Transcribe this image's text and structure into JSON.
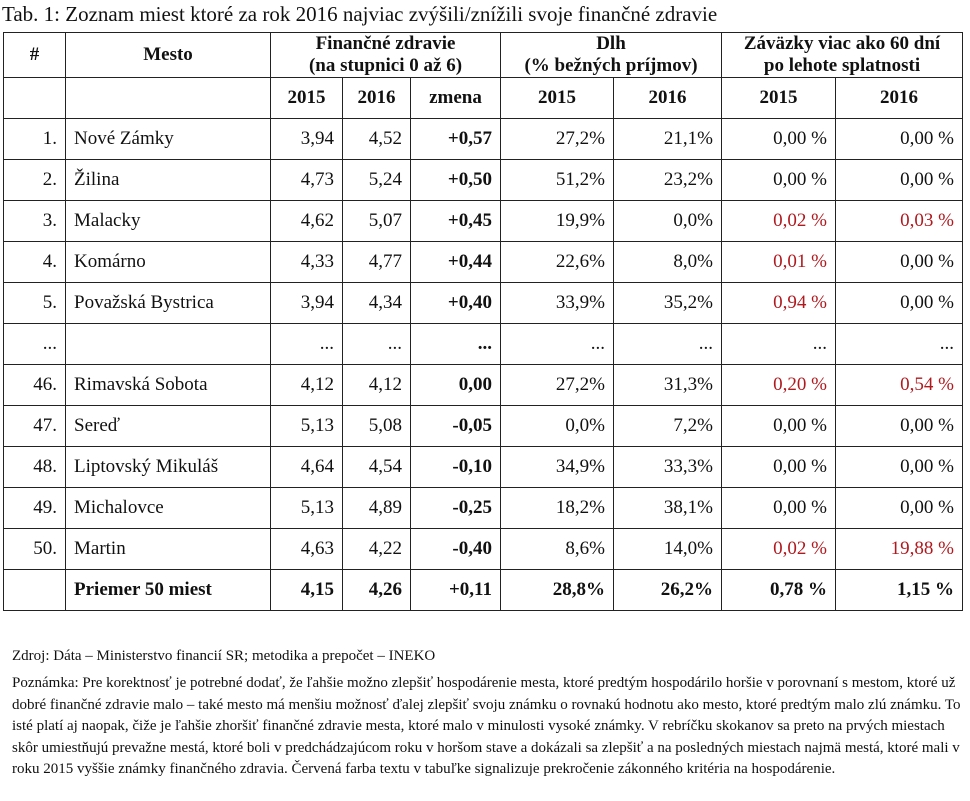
{
  "title": "Tab. 1: Zoznam miest ktoré za rok 2016 najviac zvýšili/znížili svoje finančné zdravie",
  "headers": {
    "num": "#",
    "city": "Mesto",
    "health_line1": "Finančné zdravie",
    "health_line2": "(na stupnici 0 až 6)",
    "debt_line1": "Dlh",
    "debt_line2": "(% bežných príjmov)",
    "liab_line1": "Záväzky viac ako 60 dní",
    "liab_line2": "po lehote splatnosti",
    "y2015": "2015",
    "y2016": "2016",
    "change": "zmena"
  },
  "rows": [
    {
      "n": "1.",
      "city": "Nové Zámky",
      "h15": "3,94",
      "h16": "4,52",
      "ch": "+0,57",
      "d15": "27,2%",
      "d16": "21,1%",
      "l15": "0,00 %",
      "l16": "0,00 %",
      "l15_red": false,
      "l16_red": false
    },
    {
      "n": "2.",
      "city": "Žilina",
      "h15": "4,73",
      "h16": "5,24",
      "ch": "+0,50",
      "d15": "51,2%",
      "d16": "23,2%",
      "l15": "0,00 %",
      "l16": "0,00 %",
      "l15_red": false,
      "l16_red": false
    },
    {
      "n": "3.",
      "city": "Malacky",
      "h15": "4,62",
      "h16": "5,07",
      "ch": "+0,45",
      "d15": "19,9%",
      "d16": "0,0%",
      "l15": "0,02 %",
      "l16": "0,03 %",
      "l15_red": true,
      "l16_red": true
    },
    {
      "n": "4.",
      "city": "Komárno",
      "h15": "4,33",
      "h16": "4,77",
      "ch": "+0,44",
      "d15": "22,6%",
      "d16": "8,0%",
      "l15": "0,01 %",
      "l16": "0,00 %",
      "l15_red": true,
      "l16_red": false
    },
    {
      "n": "5.",
      "city": "Považská Bystrica",
      "h15": "3,94",
      "h16": "4,34",
      "ch": "+0,40",
      "d15": "33,9%",
      "d16": "35,2%",
      "l15": "0,94 %",
      "l16": "0,00 %",
      "l15_red": true,
      "l16_red": false
    },
    {
      "n": "...",
      "city": "",
      "h15": "...",
      "h16": "...",
      "ch": "...",
      "d15": "...",
      "d16": "...",
      "l15": "...",
      "l16": "...",
      "l15_red": false,
      "l16_red": false
    },
    {
      "n": "46.",
      "city": "Rimavská Sobota",
      "h15": "4,12",
      "h16": "4,12",
      "ch": "0,00",
      "d15": "27,2%",
      "d16": "31,3%",
      "l15": "0,20 %",
      "l16": "0,54 %",
      "l15_red": true,
      "l16_red": true
    },
    {
      "n": "47.",
      "city": "Sereď",
      "h15": "5,13",
      "h16": "5,08",
      "ch": "-0,05",
      "d15": "0,0%",
      "d16": "7,2%",
      "l15": "0,00 %",
      "l16": "0,00 %",
      "l15_red": false,
      "l16_red": false
    },
    {
      "n": "48.",
      "city": "Liptovský Mikuláš",
      "h15": "4,64",
      "h16": "4,54",
      "ch": "-0,10",
      "d15": "34,9%",
      "d16": "33,3%",
      "l15": "0,00 %",
      "l16": "0,00 %",
      "l15_red": false,
      "l16_red": false
    },
    {
      "n": "49.",
      "city": "Michalovce",
      "h15": "5,13",
      "h16": "4,89",
      "ch": "-0,25",
      "d15": "18,2%",
      "d16": "38,1%",
      "l15": "0,00 %",
      "l16": "0,00 %",
      "l15_red": false,
      "l16_red": false
    },
    {
      "n": "50.",
      "city": "Martin",
      "h15": "4,63",
      "h16": "4,22",
      "ch": "-0,40",
      "d15": "8,6%",
      "d16": "14,0%",
      "l15": "0,02 %",
      "l16": "19,88 %",
      "l15_red": true,
      "l16_red": true
    }
  ],
  "average": {
    "label": "Priemer 50 miest",
    "h15": "4,15",
    "h16": "4,26",
    "ch": "+0,11",
    "d15": "28,8%",
    "d16": "26,2%",
    "l15": "0,78 %",
    "l16": "1,15 %"
  },
  "source": "Zdroj: Dáta – Ministerstvo financií SR; metodika a prepočet – INEKO",
  "note": "Poznámka: Pre korektnosť je potrebné dodať, že ľahšie možno zlepšiť hospodárenie mesta, ktoré predtým hospodárilo horšie v porovnaní s mestom, ktoré už dobré finančné zdravie malo – také mesto má menšiu možnosť ďalej zlepšiť svoju známku o rovnakú hodnotu ako mesto, ktoré predtým malo zlú známku. To isté platí aj naopak, čiže je ľahšie zhoršiť finančné zdravie mesta, ktoré malo v minulosti vysoké známky. V rebríčku skokanov sa preto na prvých miestach skôr umiestňujú prevažne mestá, ktoré boli v predchádzajúcom roku v horšom stave a dokázali sa zlepšiť a na posledných miestach najmä mestá, ktoré mali v roku 2015 vyššie známky finančného zdravia. Červená farba textu v tabuľke signalizuje prekročenie zákonného kritéria na hospodárenie.",
  "colors": {
    "red": "#b0191e",
    "border": "#222222"
  }
}
